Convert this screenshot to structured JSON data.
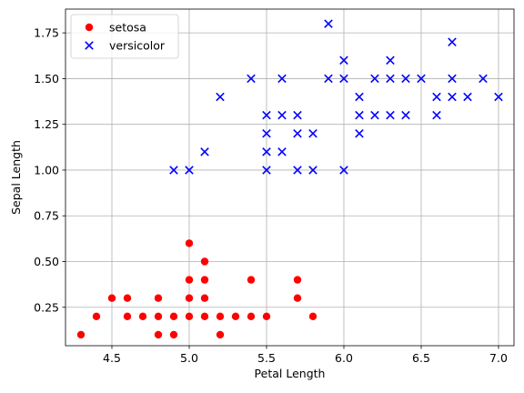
{
  "chart_data": {
    "type": "scatter",
    "title": "",
    "xlabel": "Petal Length",
    "ylabel": "Sepal Length",
    "xlim": [
      4.2,
      7.1
    ],
    "ylim": [
      0.04,
      1.88
    ],
    "xticks": [
      4.5,
      5.0,
      5.5,
      6.0,
      6.5,
      7.0
    ],
    "xtick_labels": [
      "4.5",
      "5.0",
      "5.5",
      "6.0",
      "6.5",
      "7.0"
    ],
    "yticks": [
      0.25,
      0.5,
      0.75,
      1.0,
      1.25,
      1.5,
      1.75
    ],
    "ytick_labels": [
      "0.25",
      "0.50",
      "0.75",
      "1.00",
      "1.25",
      "1.50",
      "1.75"
    ],
    "grid": true,
    "legend_position": "top-left",
    "series": [
      {
        "name": "setosa",
        "marker": "circle",
        "color": "#ff0000",
        "points": [
          [
            4.3,
            0.1
          ],
          [
            4.4,
            0.2
          ],
          [
            4.5,
            0.3
          ],
          [
            4.6,
            0.2
          ],
          [
            4.6,
            0.3
          ],
          [
            4.7,
            0.2
          ],
          [
            4.8,
            0.1
          ],
          [
            4.8,
            0.2
          ],
          [
            4.8,
            0.3
          ],
          [
            4.9,
            0.1
          ],
          [
            4.9,
            0.2
          ],
          [
            5.0,
            0.2
          ],
          [
            5.0,
            0.3
          ],
          [
            5.0,
            0.4
          ],
          [
            5.0,
            0.6
          ],
          [
            5.1,
            0.2
          ],
          [
            5.1,
            0.3
          ],
          [
            5.1,
            0.4
          ],
          [
            5.1,
            0.5
          ],
          [
            5.2,
            0.1
          ],
          [
            5.2,
            0.2
          ],
          [
            5.3,
            0.2
          ],
          [
            5.4,
            0.2
          ],
          [
            5.4,
            0.4
          ],
          [
            5.5,
            0.2
          ],
          [
            5.7,
            0.3
          ],
          [
            5.7,
            0.4
          ],
          [
            5.8,
            0.2
          ]
        ]
      },
      {
        "name": "versicolor",
        "marker": "x",
        "color": "#0000ff",
        "points": [
          [
            4.9,
            1.0
          ],
          [
            5.0,
            1.0
          ],
          [
            5.1,
            1.1
          ],
          [
            5.2,
            1.4
          ],
          [
            5.4,
            1.5
          ],
          [
            5.5,
            1.0
          ],
          [
            5.5,
            1.1
          ],
          [
            5.5,
            1.2
          ],
          [
            5.5,
            1.3
          ],
          [
            5.6,
            1.1
          ],
          [
            5.6,
            1.3
          ],
          [
            5.6,
            1.5
          ],
          [
            5.7,
            1.0
          ],
          [
            5.7,
            1.2
          ],
          [
            5.7,
            1.3
          ],
          [
            5.8,
            1.0
          ],
          [
            5.8,
            1.2
          ],
          [
            5.9,
            1.5
          ],
          [
            5.9,
            1.8
          ],
          [
            6.0,
            1.0
          ],
          [
            6.0,
            1.5
          ],
          [
            6.0,
            1.6
          ],
          [
            6.1,
            1.2
          ],
          [
            6.1,
            1.3
          ],
          [
            6.1,
            1.4
          ],
          [
            6.2,
            1.3
          ],
          [
            6.2,
            1.5
          ],
          [
            6.3,
            1.3
          ],
          [
            6.3,
            1.5
          ],
          [
            6.3,
            1.6
          ],
          [
            6.4,
            1.3
          ],
          [
            6.4,
            1.5
          ],
          [
            6.5,
            1.5
          ],
          [
            6.6,
            1.3
          ],
          [
            6.6,
            1.4
          ],
          [
            6.7,
            1.4
          ],
          [
            6.7,
            1.5
          ],
          [
            6.7,
            1.7
          ],
          [
            6.8,
            1.4
          ],
          [
            6.9,
            1.5
          ],
          [
            7.0,
            1.4
          ]
        ]
      }
    ]
  }
}
